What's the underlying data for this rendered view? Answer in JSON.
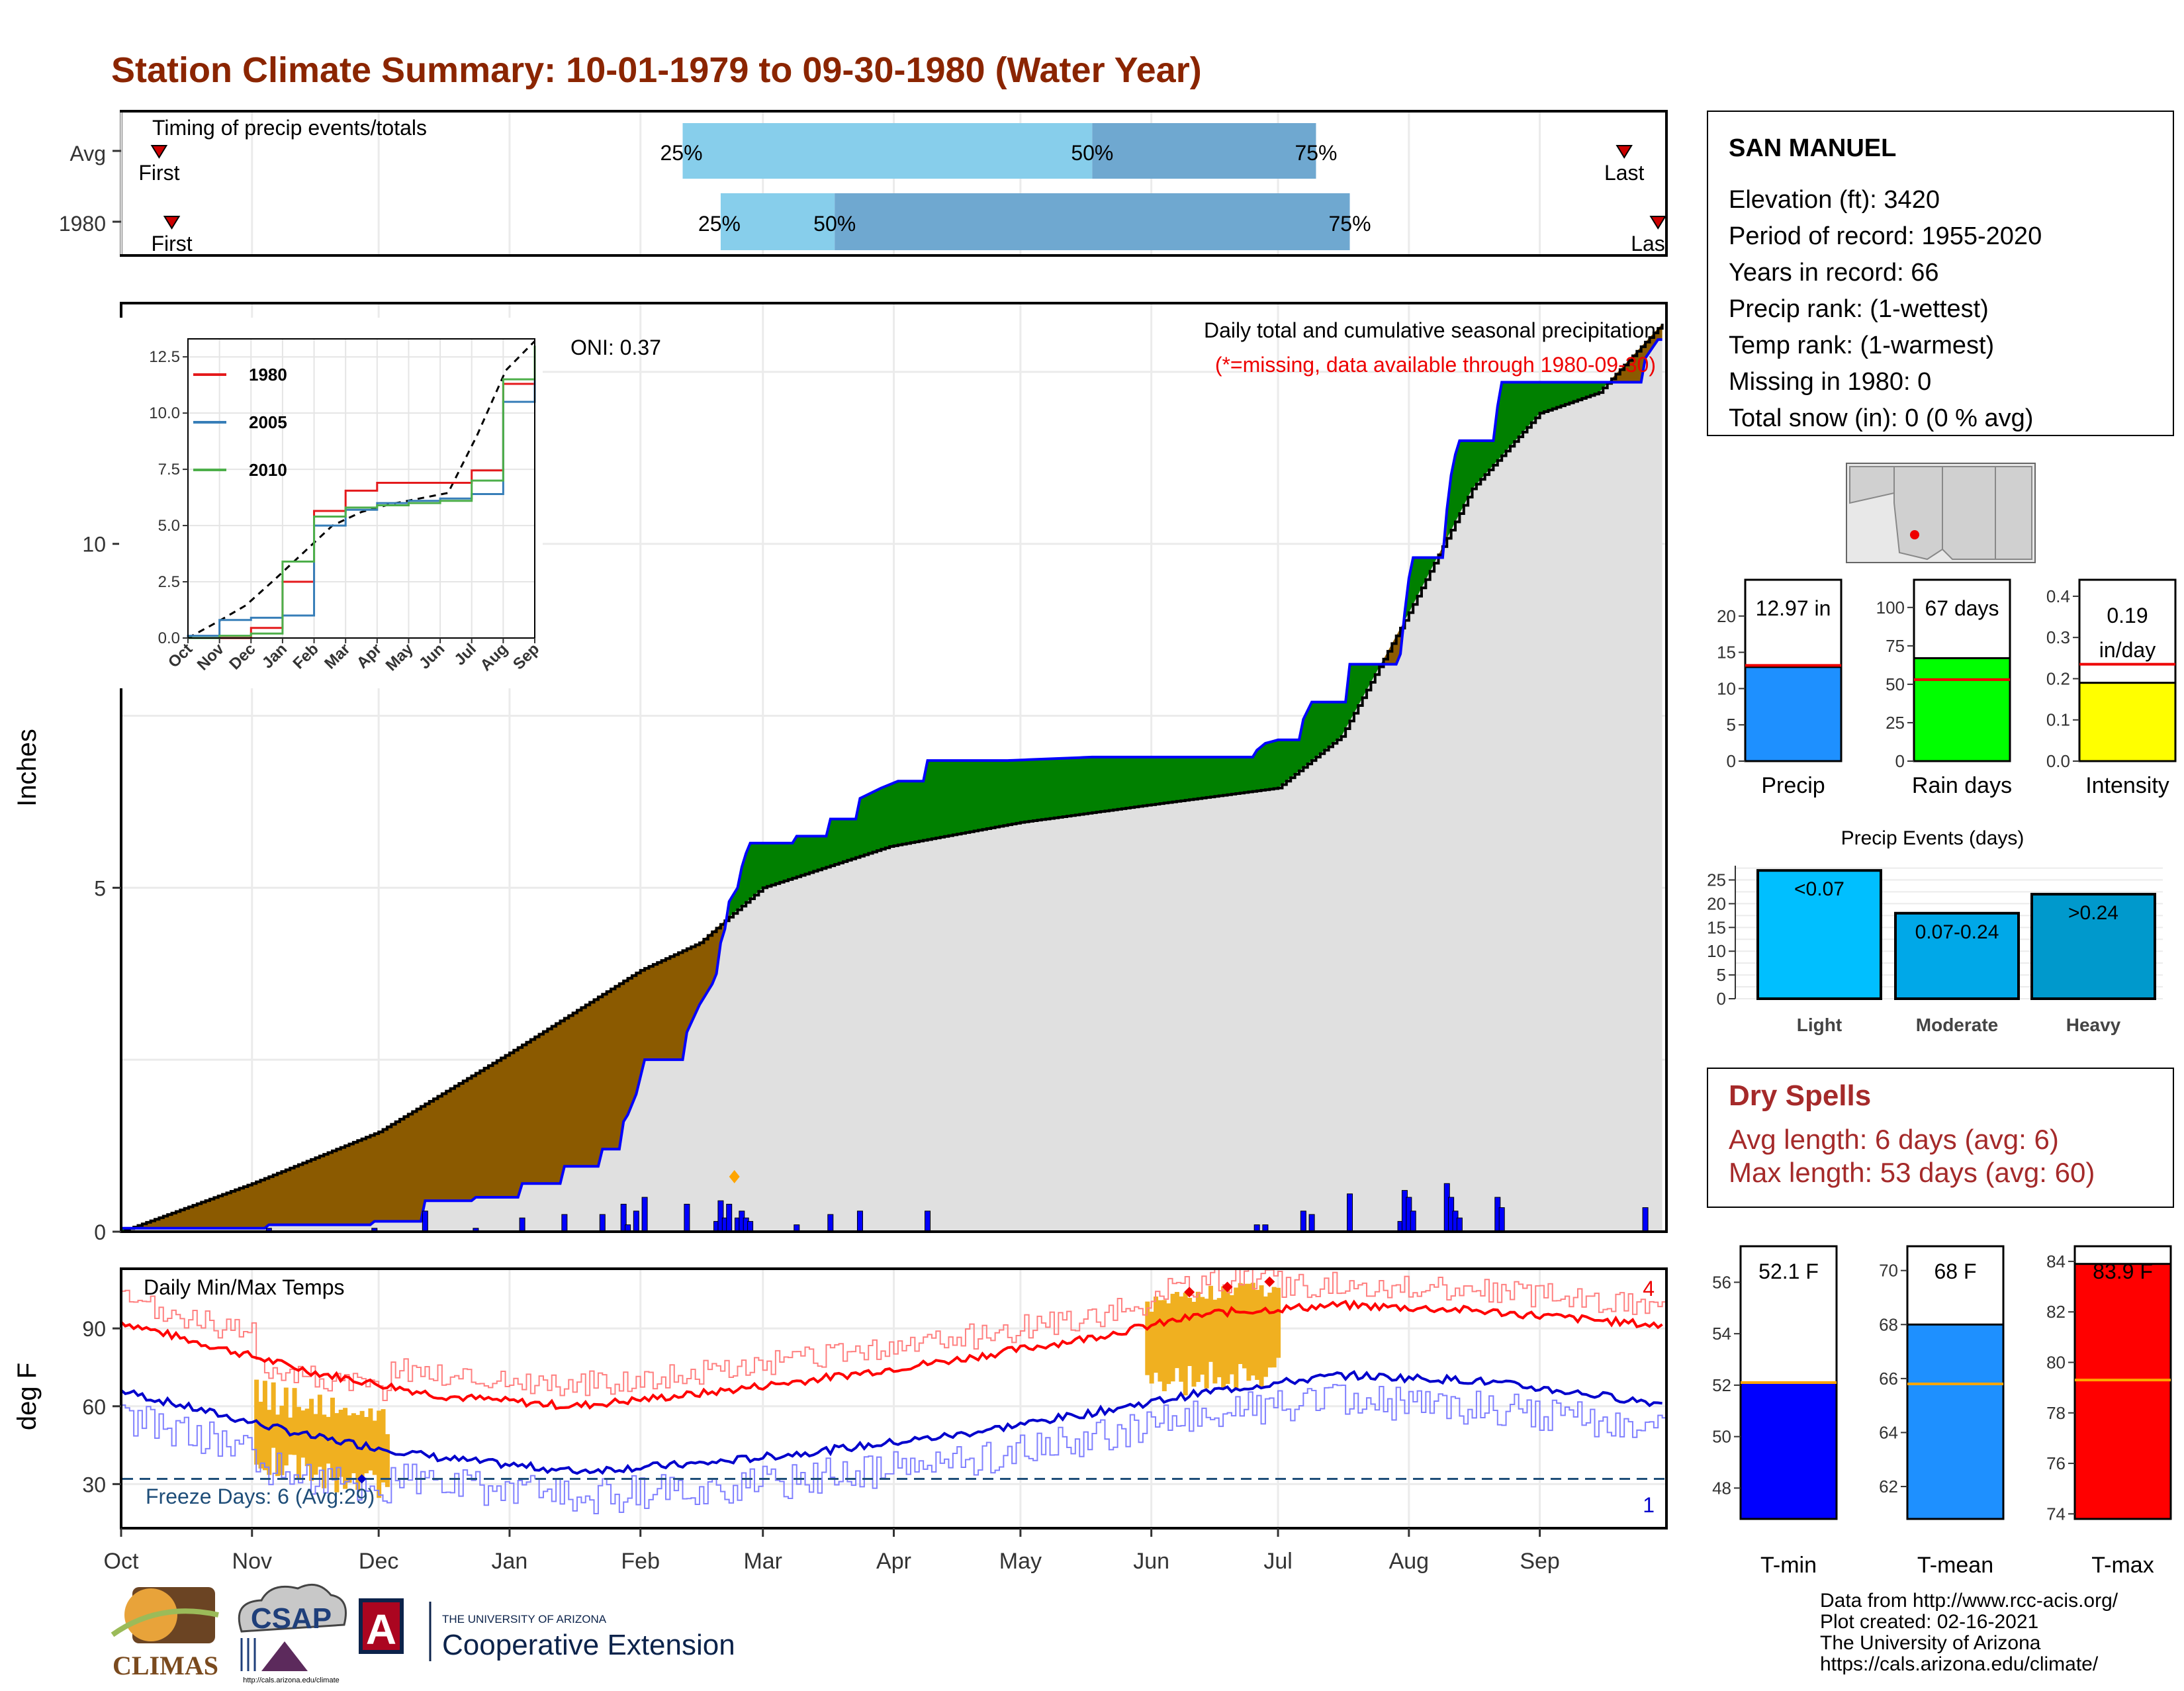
{
  "title": "Station Climate Summary: 10-01-1979 to 09-30-1980 (Water Year)",
  "timing_panel": {
    "heading": "Timing of precip events/totals",
    "rows": [
      {
        "label": "Avg",
        "first_label": "First",
        "last_label": "Last",
        "first_day": 9,
        "last_day": 356,
        "p25_day": 133,
        "p50_day": 230,
        "p75_day": 283,
        "p25_label": "25%",
        "p50_label": "50%",
        "p75_label": "75%"
      },
      {
        "label": "1980",
        "first_label": "First",
        "last_label": "Las",
        "first_day": 12,
        "last_day": 364,
        "p25_day": 142,
        "p50_day": 169,
        "p75_day": 291,
        "p25_label": "25%",
        "p50_label": "50%",
        "p75_label": "75%"
      }
    ],
    "colors": {
      "q1": "#87ceeb",
      "q2": "#6fa8d0",
      "marker": "#cc0000"
    }
  },
  "precip_panel": {
    "ylabel": "Inches",
    "y_ticks": [
      "0",
      "5",
      "10"
    ],
    "y_range": [
      0,
      13.5
    ],
    "subtitle": "Daily total and cumulative seasonal precipitation",
    "note": "(*=missing, data available through 1980-09-30)",
    "oni": "ONI: 0.37",
    "colors": {
      "above": "#008000",
      "below": "#8b5a00",
      "avg_fill": "#e0e0e0",
      "obs_line": "#0000ff",
      "bar": "#0000ff"
    }
  },
  "inset": {
    "y_ticks": [
      "0.0",
      "2.5",
      "5.0",
      "7.5",
      "10.0",
      "12.5"
    ],
    "x_ticks": [
      "Oct",
      "Nov",
      "Dec",
      "Jan",
      "Feb",
      "Mar",
      "Apr",
      "May",
      "Jun",
      "Jul",
      "Aug",
      "Sep"
    ],
    "legend": [
      {
        "name": "1980",
        "color": "#e41a1c"
      },
      {
        "name": "2005",
        "color": "#377eb8"
      },
      {
        "name": "2010",
        "color": "#4daf4a"
      }
    ]
  },
  "temp_panel": {
    "ylabel": "deg F",
    "heading": "Daily Min/Max Temps",
    "y_ticks": [
      "30",
      "60",
      "90"
    ],
    "y_range": [
      13,
      113
    ],
    "count_top": "4",
    "count_bottom": "1",
    "freeze_text": "Freeze Days: 6 (Avg:29)",
    "freeze_line": 32,
    "colors": {
      "avg_max": "#ff0000",
      "avg_min": "#0000cc",
      "obs_max": "#ff8080",
      "obs_min": "#8080ff",
      "anom": "#f0b020",
      "freeze": "#1f4e79"
    }
  },
  "x_axis_months": [
    "Oct",
    "Nov",
    "Dec",
    "Jan",
    "Feb",
    "Mar",
    "Apr",
    "May",
    "Jun",
    "Jul",
    "Aug",
    "Sep"
  ],
  "station": {
    "name": "SAN MANUEL",
    "lines": [
      "Elevation (ft): 3420",
      "Period of record: 1955-2020",
      "Years in record: 66",
      "Precip rank:  (1-wettest)",
      "Temp rank:  (1-warmest)",
      "Missing in 1980: 0",
      "Total snow (in): 0 (0 % avg)"
    ]
  },
  "summary_bars": [
    {
      "label": "Precip",
      "value_text": "12.97 in",
      "value": 12.97,
      "avg": 13.2,
      "ticks": [
        "0",
        "5",
        "10",
        "15",
        "20"
      ],
      "max": 25,
      "color": "#1e90ff"
    },
    {
      "label": "Rain days",
      "value_text": "67 days",
      "value": 67,
      "avg": 53,
      "ticks": [
        "0",
        "25",
        "50",
        "75",
        "100"
      ],
      "max": 118,
      "color": "#00ff00"
    },
    {
      "label": "Intensity",
      "value_text": "0.19 in/day",
      "value": 0.19,
      "avg": 0.235,
      "ticks": [
        "0.0",
        "0.1",
        "0.2",
        "0.3",
        "0.4"
      ],
      "max": 0.44,
      "color": "#ffff00"
    }
  ],
  "precip_events": {
    "title": "Precip Events (days)",
    "ticks": [
      "0",
      "5",
      "10",
      "15",
      "20",
      "25"
    ],
    "bars": [
      {
        "category": "Light",
        "label": "<0.07",
        "value": 27,
        "color": "#00bfff"
      },
      {
        "category": "Moderate",
        "label": "0.07-0.24",
        "value": 18,
        "color": "#00a8e8"
      },
      {
        "category": "Heavy",
        "label": ">0.24",
        "value": 22,
        "color": "#0099cc"
      }
    ]
  },
  "dry_spells": {
    "title": "Dry Spells",
    "avg_line": "Avg length: 6 days (avg: 6)",
    "max_line": "Max length: 53 days (avg: 60)"
  },
  "temp_bars": [
    {
      "label": "T-min",
      "value_text": "52.1 F",
      "value": 52.1,
      "avg": 52.1,
      "ticks": [
        "48",
        "50",
        "52",
        "54",
        "56"
      ],
      "range": [
        46.8,
        57.4
      ],
      "color": "#0000ff"
    },
    {
      "label": "T-mean",
      "value_text": "68 F",
      "value": 68,
      "avg": 65.8,
      "ticks": [
        "62",
        "64",
        "66",
        "68",
        "70"
      ],
      "range": [
        60.8,
        70.9
      ],
      "color": "#1e90ff"
    },
    {
      "label": "T-max",
      "value_text": "83.9 F",
      "value": 83.9,
      "avg": 79.3,
      "ticks": [
        "74",
        "76",
        "78",
        "80",
        "82",
        "84"
      ],
      "range": [
        73.8,
        84.6
      ],
      "color": "#ff0000"
    }
  ],
  "footer": {
    "lines": [
      "Data from http://www.rcc-acis.org/",
      "Plot created: 02-16-2021",
      "The University of Arizona",
      "https://cals.arizona.edu/climate/"
    ]
  },
  "logos": {
    "climas": "CLIMAS",
    "csap": "CSAP",
    "csap_url": "http://cals.arizona.edu/climate",
    "ua_letter": "A",
    "ua_small": "THE UNIVERSITY OF ARIZONA",
    "ua_big": "Cooperative Extension"
  },
  "chart_data": [
    {
      "type": "line",
      "title": "Daily total and cumulative seasonal precipitation",
      "ylabel": "Inches",
      "x_unit": "day of water year (Oct 1 = 0)",
      "ylim": [
        0,
        13.5
      ],
      "series": [
        {
          "name": "observed cumulative (1980)",
          "points": [
            [
              0,
              0.05
            ],
            [
              34,
              0.05
            ],
            [
              35,
              0.1
            ],
            [
              59,
              0.1
            ],
            [
              60,
              0.15
            ],
            [
              71,
              0.15
            ],
            [
              72,
              0.45
            ],
            [
              83,
              0.45
            ],
            [
              84,
              0.5
            ],
            [
              94,
              0.5
            ],
            [
              95,
              0.7
            ],
            [
              104,
              0.7
            ],
            [
              105,
              0.95
            ],
            [
              113,
              0.95
            ],
            [
              114,
              1.2
            ],
            [
              118,
              1.2
            ],
            [
              119,
              1.6
            ],
            [
              120,
              1.7
            ],
            [
              122,
              2.0
            ],
            [
              124,
              2.5
            ],
            [
              133,
              2.5
            ],
            [
              134,
              2.9
            ],
            [
              137,
              3.3
            ],
            [
              140,
              3.6
            ],
            [
              141,
              3.75
            ],
            [
              142,
              4.2
            ],
            [
              143,
              4.4
            ],
            [
              144,
              4.8
            ],
            [
              146,
              5.0
            ],
            [
              147,
              5.3
            ],
            [
              148,
              5.5
            ],
            [
              149,
              5.65
            ],
            [
              159,
              5.65
            ],
            [
              160,
              5.75
            ],
            [
              167,
              5.75
            ],
            [
              168,
              6.0
            ],
            [
              174,
              6.0
            ],
            [
              175,
              6.3
            ],
            [
              180,
              6.45
            ],
            [
              184,
              6.55
            ],
            [
              190,
              6.55
            ],
            [
              191,
              6.85
            ],
            [
              210,
              6.85
            ],
            [
              230,
              6.9
            ],
            [
              268,
              6.9
            ],
            [
              269,
              7.0
            ],
            [
              271,
              7.1
            ],
            [
              274,
              7.15
            ],
            [
              279,
              7.15
            ],
            [
              280,
              7.45
            ],
            [
              282,
              7.7
            ],
            [
              290,
              7.7
            ],
            [
              291,
              8.25
            ],
            [
              302,
              8.25
            ],
            [
              303,
              8.4
            ],
            [
              304,
              9.0
            ],
            [
              305,
              9.5
            ],
            [
              306,
              9.8
            ],
            [
              313,
              9.8
            ],
            [
              314,
              10.5
            ],
            [
              315,
              11.0
            ],
            [
              316,
              11.3
            ],
            [
              317,
              11.5
            ],
            [
              325,
              11.5
            ],
            [
              326,
              12.0
            ],
            [
              327,
              12.35
            ],
            [
              360,
              12.35
            ],
            [
              361,
              12.7
            ],
            [
              364,
              12.97
            ]
          ]
        },
        {
          "name": "average cumulative",
          "points": [
            [
              0,
              0
            ],
            [
              31,
              0.7
            ],
            [
              61,
              1.45
            ],
            [
              92,
              2.6
            ],
            [
              123,
              3.8
            ],
            [
              137,
              4.2
            ],
            [
              152,
              5.0
            ],
            [
              182,
              5.6
            ],
            [
              213,
              5.95
            ],
            [
              243,
              6.2
            ],
            [
              274,
              6.45
            ],
            [
              289,
              7.2
            ],
            [
              305,
              9.0
            ],
            [
              320,
              10.8
            ],
            [
              336,
              11.9
            ],
            [
              350,
              12.2
            ],
            [
              365,
              13.2
            ]
          ]
        }
      ]
    },
    {
      "type": "line",
      "title": "",
      "x": [
        "Oct",
        "Nov",
        "Dec",
        "Jan",
        "Feb",
        "Mar",
        "Apr",
        "May",
        "Jun",
        "Jul",
        "Aug",
        "Sep"
      ],
      "ylim": [
        0,
        13
      ],
      "series": [
        {
          "name": "1980",
          "values": [
            0.0,
            0.0,
            0.45,
            2.5,
            5.65,
            6.55,
            6.9,
            6.9,
            6.9,
            7.45,
            11.3,
            12.35
          ]
        },
        {
          "name": "2005",
          "values": [
            0.1,
            0.8,
            0.9,
            1.0,
            5.0,
            5.7,
            6.0,
            6.1,
            6.2,
            6.4,
            10.5,
            12.2
          ]
        },
        {
          "name": "2010",
          "values": [
            0.0,
            0.1,
            0.2,
            3.4,
            5.4,
            5.8,
            5.9,
            6.0,
            6.1,
            7.0,
            11.5,
            12.5
          ]
        }
      ]
    },
    {
      "type": "bar",
      "title": "",
      "categories": [
        "Precip",
        "Rain days",
        "Intensity"
      ],
      "series": [
        {
          "name": "",
          "values": [
            12.97,
            67,
            0.19
          ]
        }
      ]
    },
    {
      "type": "bar",
      "title": "Precip Events (days)",
      "categories": [
        "Light",
        "Moderate",
        "Heavy"
      ],
      "series": [
        {
          "name": "",
          "values": [
            27,
            18,
            22
          ]
        }
      ],
      "ylim": [
        0,
        28
      ]
    },
    {
      "type": "line",
      "title": "Daily Min/Max Temps",
      "ylabel": "deg F",
      "x": [
        "Oct",
        "Nov",
        "Dec",
        "Jan",
        "Feb",
        "Mar",
        "Apr",
        "May",
        "Jun",
        "Jul",
        "Aug",
        "Sep"
      ],
      "ylim": [
        13,
        113
      ],
      "series": [
        {
          "name": "avg max",
          "values": [
            86,
            73,
            64,
            60,
            65,
            71,
            78,
            86,
            96,
            99,
            97,
            93
          ]
        },
        {
          "name": "avg min",
          "values": [
            60,
            48,
            40,
            35,
            38,
            43,
            49,
            57,
            66,
            72,
            70,
            64
          ]
        }
      ]
    },
    {
      "type": "bar",
      "title": "",
      "categories": [
        "T-min",
        "T-mean",
        "T-max"
      ],
      "series": [
        {
          "name": "",
          "values": [
            52.1,
            68,
            83.9
          ]
        }
      ]
    }
  ]
}
